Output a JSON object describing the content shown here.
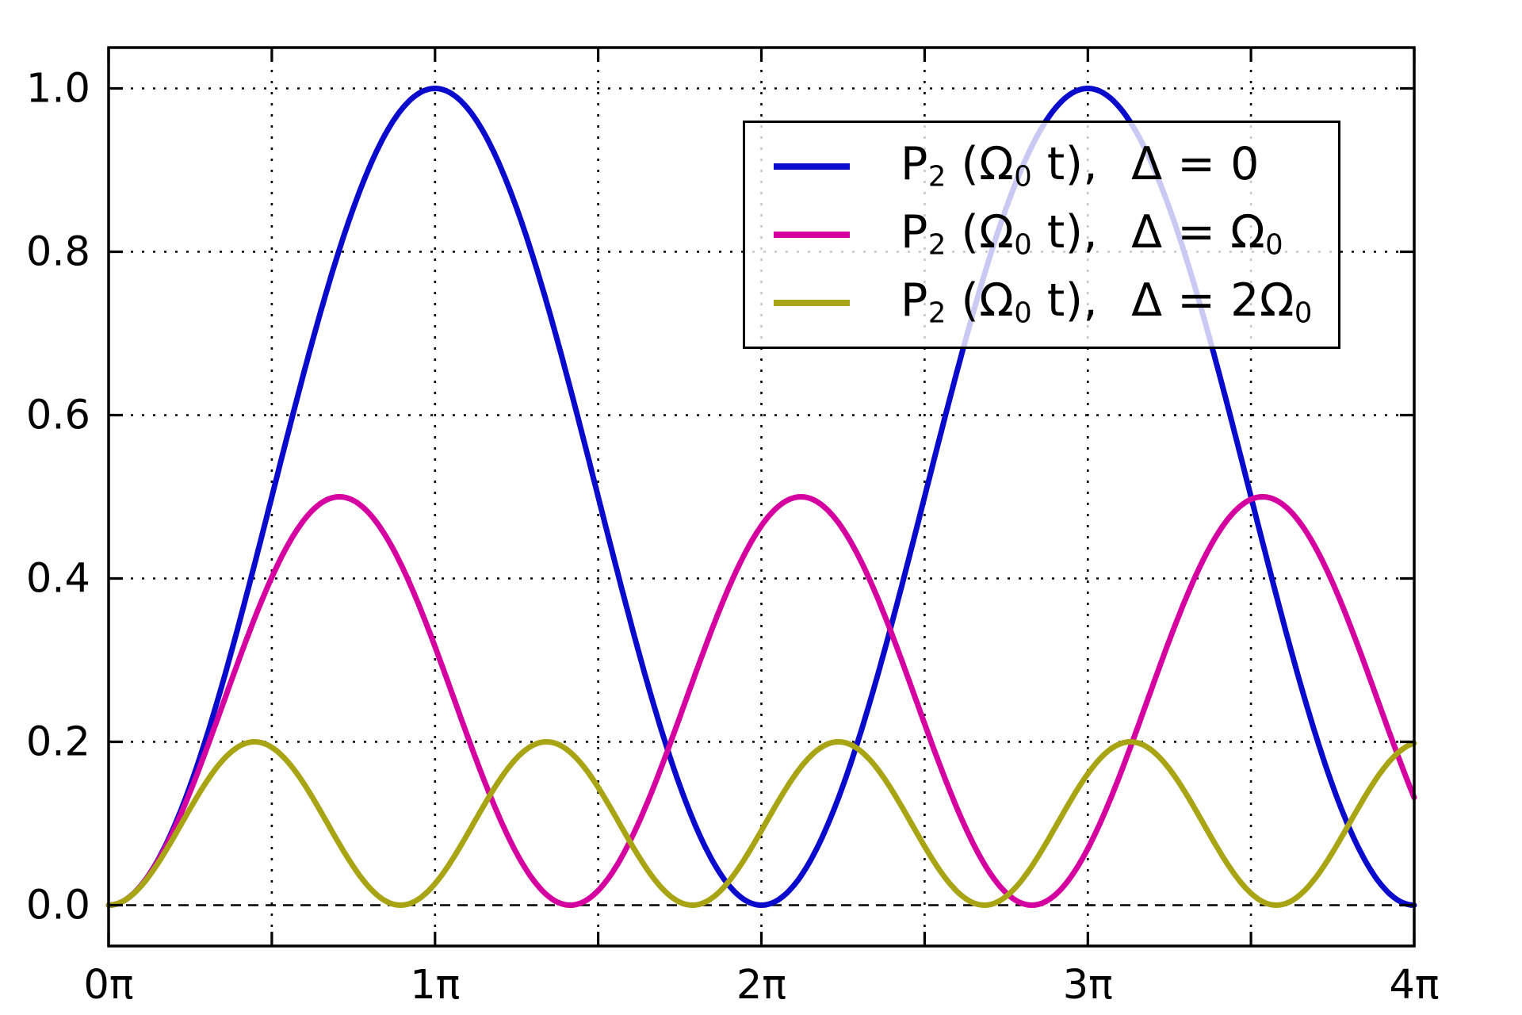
{
  "figure": {
    "background": "#ffffff",
    "title": ""
  },
  "chart_data": {
    "type": "line",
    "title": "",
    "xlabel": "",
    "ylabel": "",
    "x_axis": {
      "unit": "pi",
      "range_pi": [
        0,
        4
      ],
      "tick_positions_pi": [
        0,
        0.5,
        1,
        1.5,
        2,
        2.5,
        3,
        3.5,
        4
      ],
      "tick_labels": [
        "0π",
        "",
        "1π",
        "",
        "2π",
        "",
        "3π",
        "",
        "4π"
      ]
    },
    "y_axis": {
      "range": [
        -0.05,
        1.05
      ],
      "tick_positions": [
        0.0,
        0.2,
        0.4,
        0.6,
        0.8,
        1.0
      ],
      "tick_labels": [
        "0.0",
        "0.2",
        "0.4",
        "0.6",
        "0.8",
        "1.0"
      ]
    },
    "grid": {
      "show": true,
      "style": "dotted",
      "x_lines_pi": [
        0.5,
        1,
        1.5,
        2,
        2.5,
        3,
        3.5
      ],
      "y_lines": [
        0.2,
        0.4,
        0.6,
        0.8,
        1.0
      ]
    },
    "zero_line": {
      "y": 0.0,
      "style": "dashed",
      "color": "#000000"
    },
    "series": [
      {
        "key": "delta-0",
        "name": "P2 (Omega0 t),  Delta = 0",
        "color": "#0a0acd",
        "formula": "sin^2(Omega0*t/2)",
        "amplitude": 1.0,
        "frequency_factor": 1.0,
        "peak_value": 1.0,
        "peak_positions_pi": [
          1,
          3
        ],
        "zero_positions_pi": [
          0,
          2,
          4
        ]
      },
      {
        "key": "delta-omega0",
        "name": "P2 (Omega0 t),  Delta = Omega0",
        "color": "#d500a0",
        "formula": "0.5*sin^2(sqrt(2)*Omega0*t/2)",
        "amplitude": 0.5,
        "frequency_factor": 1.4142135624,
        "peak_value": 0.5,
        "peak_positions_pi": [
          0.707,
          2.121,
          3.536
        ],
        "zero_positions_pi": [
          0,
          1.414,
          2.828
        ]
      },
      {
        "key": "delta-2omega0",
        "name": "P2 (Omega0 t),  Delta = 2*Omega0",
        "color": "#a8a414",
        "formula": "0.2*sin^2(sqrt(5)*Omega0*t/2)",
        "amplitude": 0.2,
        "frequency_factor": 2.2360679775,
        "peak_value": 0.2,
        "peak_positions_pi": [
          0.447,
          1.342,
          2.236,
          3.13
        ],
        "zero_positions_pi": [
          0,
          0.894,
          1.789,
          2.683,
          3.578
        ]
      }
    ],
    "legend": {
      "position": "upper right",
      "border_color": "#000000",
      "items": [
        {
          "series_key": "delta-0",
          "color": "#0a0acd",
          "parts": [
            {
              "t": "P"
            },
            {
              "t": "2",
              "sub": true
            },
            {
              "t": " (Ω"
            },
            {
              "t": "0",
              "sub": true
            },
            {
              "t": " t),"
            },
            {
              "t": "Δ = 0",
              "gap": true
            }
          ]
        },
        {
          "series_key": "delta-omega0",
          "color": "#d500a0",
          "parts": [
            {
              "t": "P"
            },
            {
              "t": "2",
              "sub": true
            },
            {
              "t": " (Ω"
            },
            {
              "t": "0",
              "sub": true
            },
            {
              "t": " t),"
            },
            {
              "t": "Δ = Ω",
              "gap": true
            },
            {
              "t": "0",
              "sub": true
            }
          ]
        },
        {
          "series_key": "delta-2omega0",
          "color": "#a8a414",
          "parts": [
            {
              "t": "P"
            },
            {
              "t": "2",
              "sub": true
            },
            {
              "t": " (Ω"
            },
            {
              "t": "0",
              "sub": true
            },
            {
              "t": " t),"
            },
            {
              "t": "Δ = 2Ω",
              "gap": true
            },
            {
              "t": "0",
              "sub": true
            }
          ]
        }
      ]
    }
  }
}
